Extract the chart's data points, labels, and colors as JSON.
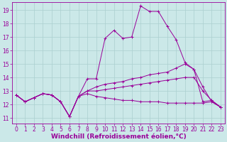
{
  "background_color": "#cbe8e8",
  "grid_color": "#aacfcf",
  "line_color": "#990099",
  "marker_color": "#990099",
  "xlabel": "Windchill (Refroidissement éolien,°C)",
  "ylabel_ticks": [
    11,
    12,
    13,
    14,
    15,
    16,
    17,
    18,
    19
  ],
  "xticks": [
    0,
    1,
    2,
    3,
    4,
    5,
    6,
    7,
    8,
    9,
    10,
    11,
    12,
    13,
    14,
    15,
    16,
    17,
    18,
    19,
    20,
    21,
    22,
    23
  ],
  "ylim": [
    10.6,
    19.6
  ],
  "xlim": [
    -0.5,
    23.5
  ],
  "series": [
    [
      12.7,
      12.2,
      12.5,
      12.8,
      12.7,
      12.2,
      11.1,
      12.6,
      13.9,
      13.9,
      16.9,
      17.5,
      16.9,
      17.0,
      19.3,
      18.9,
      18.9,
      17.8,
      16.8,
      15.1,
      14.6,
      12.2,
      12.3,
      11.8
    ],
    [
      12.7,
      12.2,
      12.5,
      12.8,
      12.7,
      12.2,
      11.1,
      12.6,
      13.0,
      13.3,
      13.5,
      13.6,
      13.7,
      13.9,
      14.0,
      14.2,
      14.3,
      14.4,
      14.7,
      15.0,
      14.6,
      13.3,
      12.2,
      11.8
    ],
    [
      12.7,
      12.2,
      12.5,
      12.8,
      12.7,
      12.2,
      11.1,
      12.6,
      13.0,
      13.0,
      13.1,
      13.2,
      13.3,
      13.4,
      13.5,
      13.6,
      13.7,
      13.8,
      13.9,
      14.0,
      14.0,
      13.0,
      12.3,
      11.8
    ],
    [
      12.7,
      12.2,
      12.5,
      12.8,
      12.7,
      12.2,
      11.1,
      12.6,
      12.8,
      12.6,
      12.5,
      12.4,
      12.3,
      12.3,
      12.2,
      12.2,
      12.2,
      12.1,
      12.1,
      12.1,
      12.1,
      12.1,
      12.2,
      11.8
    ]
  ],
  "axis_label_fontsize": 6.5,
  "tick_fontsize": 5.5,
  "linewidth": 0.7,
  "markersize": 2.5
}
